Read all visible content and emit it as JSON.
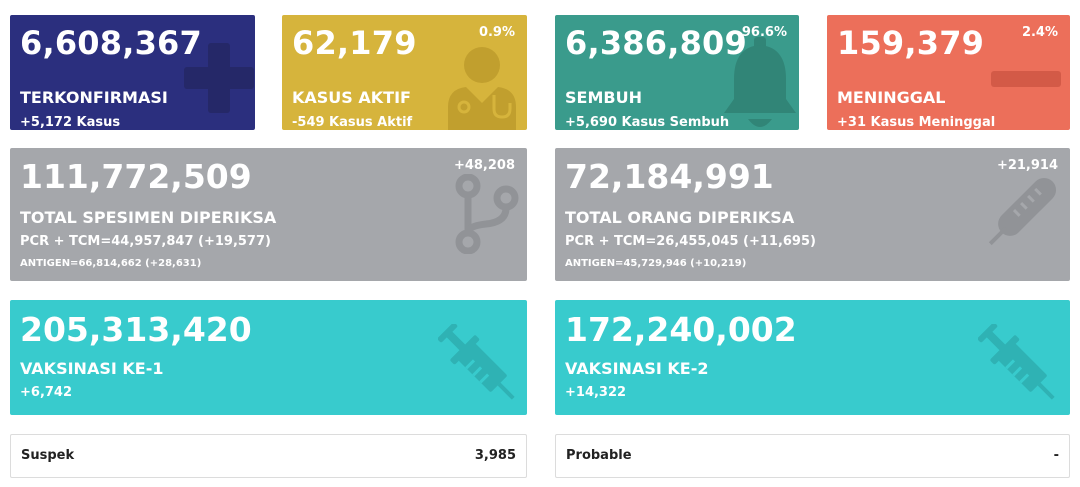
{
  "confirmed": {
    "value": "6,608,367",
    "label": "TERKONFIRMASI",
    "sub": "+5,172 Kasus",
    "icon": "plus-icon",
    "color": "#2b2f7e"
  },
  "active": {
    "value": "62,179",
    "label": "KASUS AKTIF",
    "sub": "-549 Kasus Aktif",
    "percent": "0.9%",
    "icon": "doctor-icon",
    "color": "#d6b43c"
  },
  "recovered": {
    "value": "6,386,809",
    "label": "SEMBUH",
    "sub": "+5,690 Kasus Sembuh",
    "percent": "96.6%",
    "icon": "bell-icon",
    "color": "#3a9b8c"
  },
  "deaths": {
    "value": "159,379",
    "label": "MENINGGAL",
    "sub": "+31 Kasus Meninggal",
    "percent": "2.4%",
    "icon": "minus-icon",
    "color": "#ec6f5a"
  },
  "specimen": {
    "value": "111,772,509",
    "label": "TOTAL SPESIMEN DIPERIKSA",
    "pcr": "PCR + TCM=44,957,847 (+19,577)",
    "antigen": "ANTIGEN=66,814,662 (+28,631)",
    "delta": "+48,208",
    "icon": "code-branch-icon",
    "color": "#a5a7ab"
  },
  "people": {
    "value": "72,184,991",
    "label": "TOTAL ORANG DIPERIKSA",
    "pcr": "PCR + TCM=26,455,045 (+11,695)",
    "antigen": "ANTIGEN=45,729,946 (+10,219)",
    "delta": "+21,914",
    "icon": "thermometer-icon",
    "color": "#a5a7ab"
  },
  "vaksin1": {
    "value": "205,313,420",
    "label": "VAKSINASI KE-1",
    "sub": "+6,742",
    "icon": "syringe-icon",
    "color": "#38cbcd"
  },
  "vaksin2": {
    "value": "172,240,002",
    "label": "VAKSINASI KE-2",
    "sub": "+14,322",
    "icon": "syringe-icon",
    "color": "#38cbcd"
  },
  "suspek": {
    "label": "Suspek",
    "value": "3,985"
  },
  "probable": {
    "label": "Probable",
    "value": "-"
  }
}
